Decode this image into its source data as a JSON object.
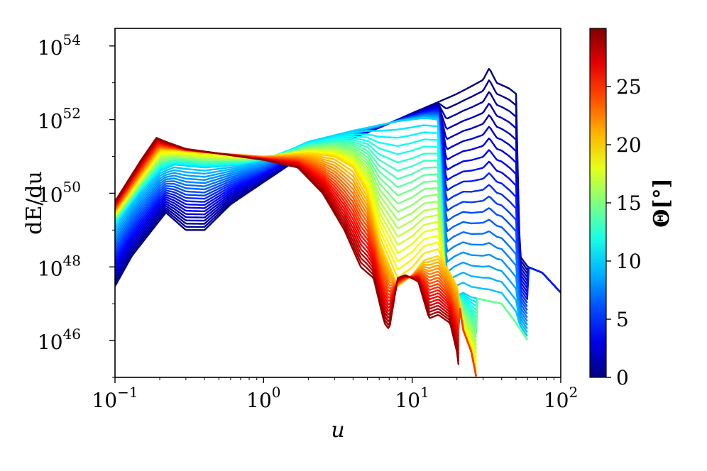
{
  "chart_data": {
    "type": "line",
    "title": "",
    "xlabel": "u",
    "ylabel": "dE/du",
    "xscale": "log",
    "yscale": "log",
    "xlim": [
      0.1,
      100
    ],
    "ylim": [
      1e+45,
      3e+54
    ],
    "x_ticks": [
      {
        "base": "10",
        "exp": "−1",
        "value": 0.1
      },
      {
        "base": "10",
        "exp": "0",
        "value": 1
      },
      {
        "base": "10",
        "exp": "1",
        "value": 10
      },
      {
        "base": "10",
        "exp": "2",
        "value": 100
      }
    ],
    "y_ticks": [
      {
        "base": "10",
        "exp": "46",
        "value": 1e+46
      },
      {
        "base": "10",
        "exp": "48",
        "value": 1e+48
      },
      {
        "base": "10",
        "exp": "50",
        "value": 1e+50
      },
      {
        "base": "10",
        "exp": "52",
        "value": 1e+52
      },
      {
        "base": "10",
        "exp": "54",
        "value": 1e+54
      }
    ],
    "grid": false,
    "legend": "none",
    "colormap": "jet",
    "colorbar": {
      "label": "Θ[°]",
      "range": [
        0,
        30
      ],
      "ticks": [
        "0",
        "5",
        "10",
        "15",
        "20",
        "25"
      ],
      "tick_values": [
        0,
        5,
        10,
        15,
        20,
        25
      ]
    },
    "series_count": 60,
    "theta_range_deg": [
      0,
      29.5
    ],
    "representative_series": [
      {
        "theta_deg": 0,
        "x": [
          0.1,
          0.13,
          0.17,
          0.22,
          0.3,
          0.4,
          0.6,
          1.0,
          1.5,
          3,
          6,
          10,
          15,
          20,
          25,
          30,
          33,
          37,
          45,
          50,
          53,
          60,
          75,
          100
        ],
        "y": [
          3e+47,
          2e+48,
          8e+48,
          3e+49,
          1e+49,
          1e+49,
          5e+49,
          2e+50,
          6e+50,
          2e+51,
          6e+51,
          1.5e+52,
          3e+52,
          5e+52,
          8e+52,
          1.2e+53,
          2.5e+53,
          1e+53,
          7e+52,
          5e+52,
          2e+48,
          1e+48,
          7e+47,
          2e+47
        ]
      },
      {
        "theta_deg": 10,
        "x": [
          0.1,
          0.15,
          0.2,
          0.25,
          0.4,
          0.7,
          1.0,
          1.5,
          2,
          4,
          8,
          12,
          15,
          17,
          19,
          22,
          25,
          40,
          50,
          60
        ],
        "y": [
          1.5e+49,
          1.2e+50,
          4e+50,
          6e+50,
          5e+50,
          6e+50,
          8e+50,
          1.5e+51,
          2.5e+51,
          5e+51,
          9e+51,
          1.1e+52,
          1e+52,
          1e+47,
          1.5e+47,
          2e+47,
          1.5e+47,
          1e+47,
          3e+46,
          1e+46
        ]
      },
      {
        "theta_deg": 20,
        "x": [
          0.1,
          0.15,
          0.2,
          0.25,
          0.5,
          1.0,
          2,
          3,
          4,
          5,
          6,
          8,
          10,
          12,
          15,
          17,
          20,
          22,
          25,
          27
        ],
        "y": [
          3e+49,
          3e+50,
          1.5e+51,
          1.5e+51,
          1.2e+51,
          1e+51,
          1.2e+51,
          1e+51,
          5e+50,
          1e+50,
          5e+48,
          3e+47,
          6e+47,
          1.5e+48,
          2e+48,
          1e+48,
          3e+47,
          2e+46,
          5e+45,
          1e+45
        ]
      },
      {
        "theta_deg": 29.5,
        "x": [
          0.1,
          0.15,
          0.19,
          0.22,
          0.3,
          0.5,
          1.0,
          1.7,
          2.5,
          3.5,
          4.5,
          5.5,
          6.5,
          7,
          8,
          9,
          11,
          13,
          15,
          18,
          20,
          21
        ],
        "y": [
          6e+49,
          8e+50,
          3.2e+51,
          2.5e+51,
          1.6e+51,
          1.2e+51,
          8e+50,
          5e+50,
          1e+50,
          1e+49,
          1e+48,
          5e+47,
          3e+46,
          2e+46,
          5e+47,
          6e+47,
          4e+47,
          4e+46,
          5e+46,
          3e+46,
          5e+45,
          1e+45
        ]
      }
    ]
  }
}
